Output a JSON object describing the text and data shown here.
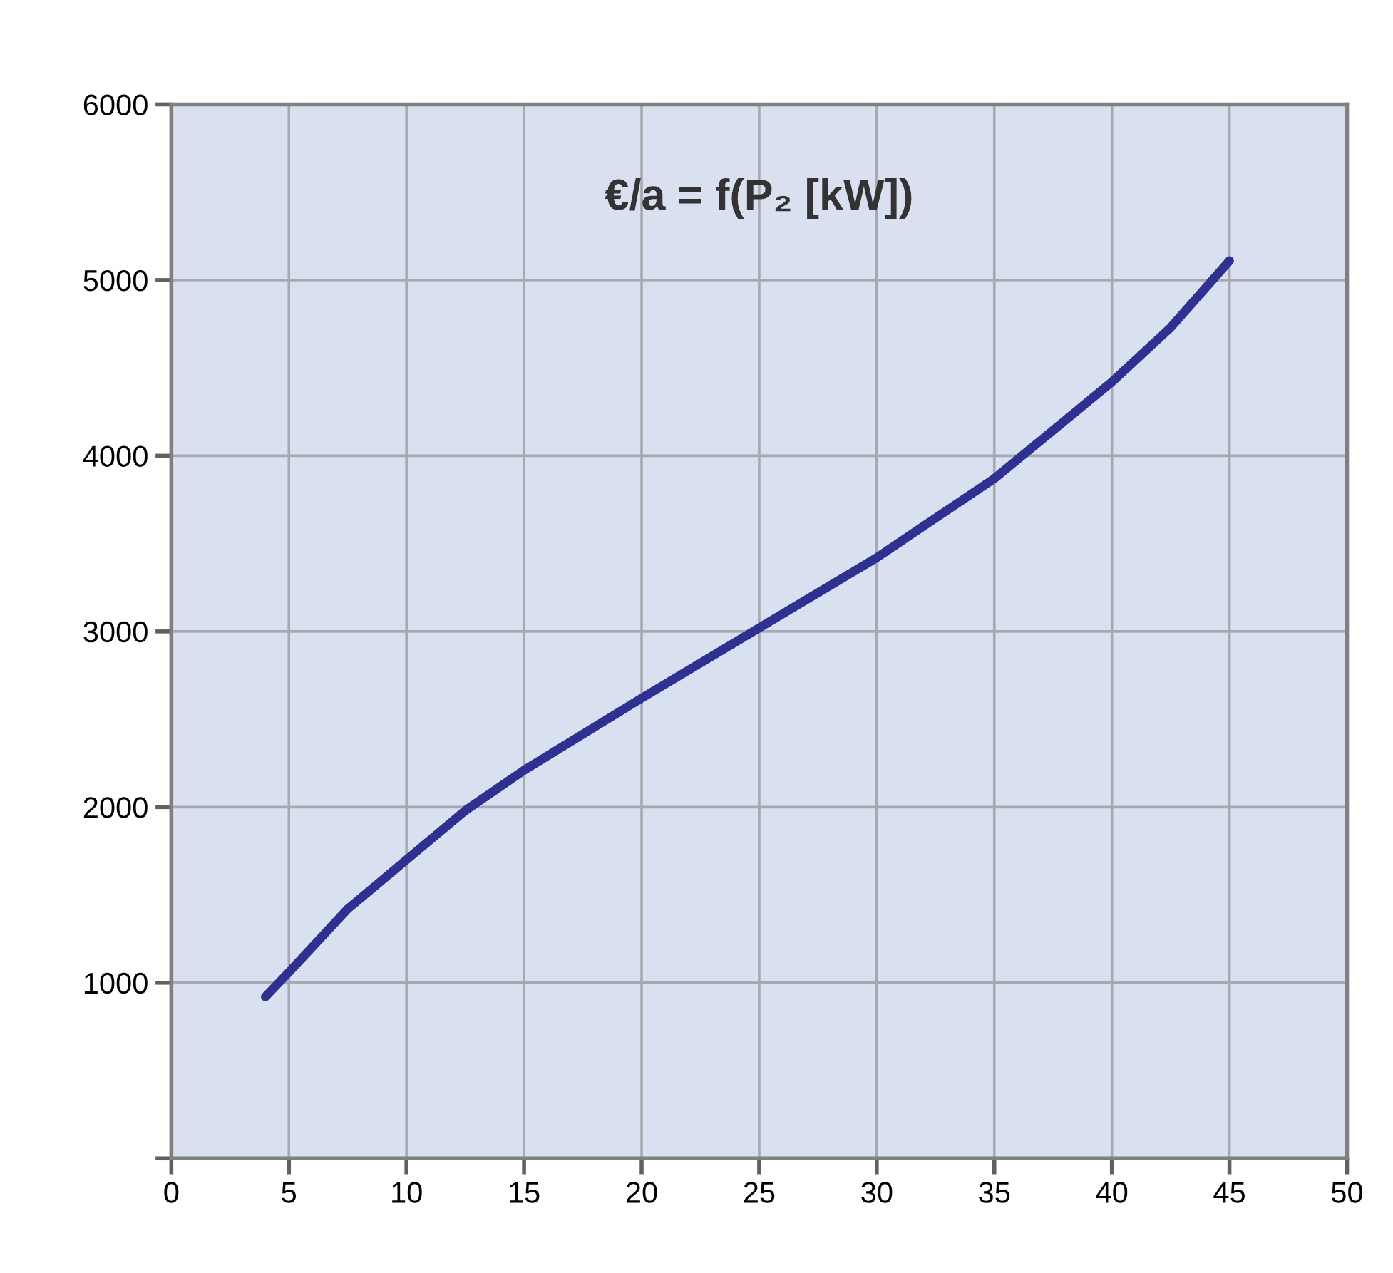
{
  "chart_data": {
    "type": "line",
    "title": "€/a = f(P₂ [kW])",
    "x": [
      4,
      5,
      7.5,
      10,
      12.5,
      15,
      20,
      25,
      30,
      35,
      40,
      42.5,
      45
    ],
    "series": [
      {
        "color": "#2e3192",
        "values": [
          920,
          1060,
          1420,
          1700,
          1980,
          2210,
          2620,
          3020,
          3420,
          3870,
          4420,
          4730,
          5110
        ]
      }
    ],
    "xlim": [
      0,
      50
    ],
    "xticks": [
      0,
      5,
      10,
      15,
      20,
      25,
      30,
      35,
      40,
      45,
      50
    ],
    "ylim": [
      0,
      6000
    ],
    "yticks": [
      {
        "value": 0,
        "label": null
      },
      1000,
      2000,
      3000,
      4000,
      5000,
      6000
    ],
    "grid": true,
    "marker": "none",
    "line_style": "solid"
  }
}
